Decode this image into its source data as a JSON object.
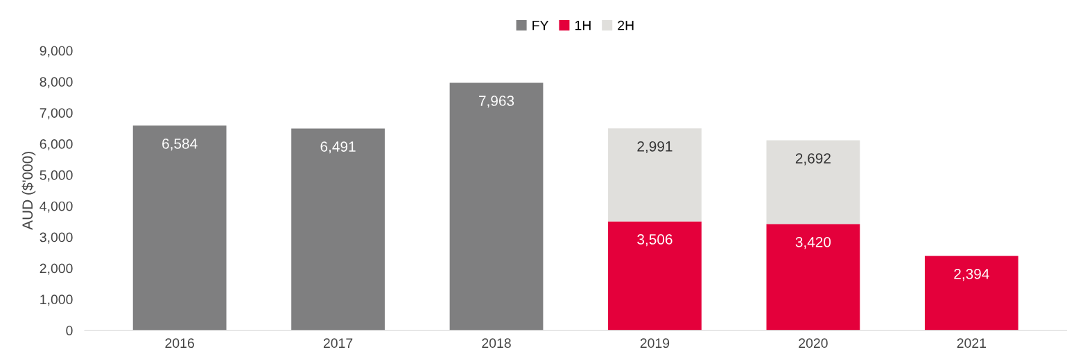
{
  "chart_data": {
    "type": "bar",
    "stacked": true,
    "ylabel": "AUD ($'000)",
    "categories": [
      "2016",
      "2017",
      "2018",
      "2019",
      "2020",
      "2021"
    ],
    "series": [
      {
        "name": "FY",
        "color": "#7f7f80",
        "values": [
          6584,
          6491,
          7963,
          null,
          null,
          null
        ],
        "value_labels": [
          "6,584",
          "6,491",
          "7,963",
          null,
          null,
          null
        ]
      },
      {
        "name": "1H",
        "color": "#e4003b",
        "values": [
          null,
          null,
          null,
          3506,
          3420,
          2394
        ],
        "value_labels": [
          null,
          null,
          null,
          "3,506",
          "3,420",
          "2,394"
        ]
      },
      {
        "name": "2H",
        "color": "#e0dfdc",
        "values": [
          null,
          null,
          null,
          2991,
          2692,
          null
        ],
        "value_labels": [
          null,
          null,
          null,
          "2,991",
          "2,692",
          null
        ]
      }
    ],
    "ylim": [
      0,
      9000
    ],
    "yticks": [
      0,
      {
        "value": 1000,
        "label": "1,000"
      },
      {
        "value": 2000,
        "label": "2,000"
      },
      {
        "value": 3000,
        "label": "3,000"
      },
      {
        "value": 4000,
        "label": "4,000"
      },
      {
        "value": 5000,
        "label": "5,000"
      },
      {
        "value": 6000,
        "label": "6,000"
      },
      {
        "value": 7000,
        "label": "7,000"
      },
      {
        "value": 8000,
        "label": "8,000"
      },
      {
        "value": 9000,
        "label": "9,000"
      }
    ],
    "grid": false,
    "legend": "top"
  }
}
